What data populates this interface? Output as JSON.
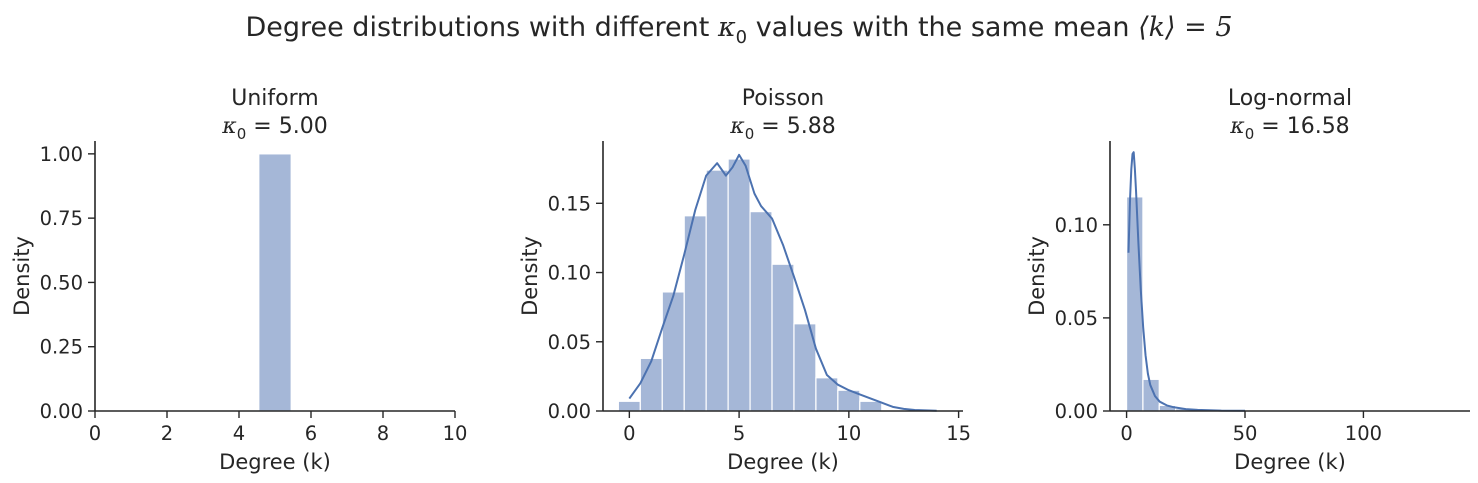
{
  "suptitle": {
    "prefix": "Degree distributions with different ",
    "kappa": "κ",
    "kappa_sub": "0",
    "middle": " values with the same mean ",
    "mean_expr": "⟨k⟩ = 5"
  },
  "colors": {
    "bar_fill": "#a5b7d7",
    "kde_line": "#4c72b0",
    "axis": "#262626"
  },
  "chart_data": [
    {
      "type": "bar",
      "title": "Uniform",
      "subtitle": {
        "symbol": "κ",
        "sub": "0",
        "value": "= 5.00"
      },
      "xlabel": "Degree (k)",
      "ylabel": "Density",
      "xlim": [
        0,
        10
      ],
      "ylim": [
        0,
        1.05
      ],
      "xticks": [
        0,
        2,
        4,
        6,
        8,
        10
      ],
      "xtick_labels": [
        "0",
        "2",
        "4",
        "6",
        "8",
        "10"
      ],
      "yticks": [
        0.0,
        0.25,
        0.5,
        0.75,
        1.0
      ],
      "ytick_labels": [
        "0.00",
        "0.25",
        "0.50",
        "0.75",
        "1.00"
      ],
      "bins": [
        {
          "x0": 4.55,
          "x1": 5.45,
          "density": 1.0
        }
      ],
      "kde": []
    },
    {
      "type": "bar",
      "title": "Poisson",
      "subtitle": {
        "symbol": "κ",
        "sub": "0",
        "value": "= 5.88"
      },
      "xlabel": "Degree (k)",
      "ylabel": "Density",
      "xlim": [
        -1.2,
        15.2
      ],
      "ylim": [
        0,
        0.195
      ],
      "xticks": [
        0,
        5,
        10,
        15
      ],
      "xtick_labels": [
        "0",
        "5",
        "10",
        "15"
      ],
      "yticks": [
        0.0,
        0.05,
        0.1,
        0.15
      ],
      "ytick_labels": [
        "0.00",
        "0.05",
        "0.10",
        "0.15"
      ],
      "bins": [
        {
          "x0": -0.5,
          "x1": 0.5,
          "density": 0.007
        },
        {
          "x0": 0.5,
          "x1": 1.5,
          "density": 0.038
        },
        {
          "x0": 1.5,
          "x1": 2.5,
          "density": 0.086
        },
        {
          "x0": 2.5,
          "x1": 3.5,
          "density": 0.141
        },
        {
          "x0": 3.5,
          "x1": 4.5,
          "density": 0.174
        },
        {
          "x0": 4.5,
          "x1": 5.5,
          "density": 0.182
        },
        {
          "x0": 5.5,
          "x1": 6.5,
          "density": 0.144
        },
        {
          "x0": 6.5,
          "x1": 7.5,
          "density": 0.106
        },
        {
          "x0": 7.5,
          "x1": 8.5,
          "density": 0.063
        },
        {
          "x0": 8.5,
          "x1": 9.5,
          "density": 0.024
        },
        {
          "x0": 9.5,
          "x1": 10.5,
          "density": 0.015
        },
        {
          "x0": 10.5,
          "x1": 11.5,
          "density": 0.007
        }
      ],
      "kde": [
        [
          0,
          0.009
        ],
        [
          0.5,
          0.02
        ],
        [
          1,
          0.036
        ],
        [
          1.5,
          0.06
        ],
        [
          2,
          0.083
        ],
        [
          2.5,
          0.113
        ],
        [
          3,
          0.145
        ],
        [
          3.5,
          0.17
        ],
        [
          4,
          0.179
        ],
        [
          4.4,
          0.17
        ],
        [
          4.7,
          0.176
        ],
        [
          5,
          0.185
        ],
        [
          5.3,
          0.177
        ],
        [
          5.7,
          0.157
        ],
        [
          6,
          0.148
        ],
        [
          6.5,
          0.139
        ],
        [
          7,
          0.12
        ],
        [
          7.5,
          0.097
        ],
        [
          8,
          0.073
        ],
        [
          8.5,
          0.045
        ],
        [
          9,
          0.026
        ],
        [
          9.5,
          0.019
        ],
        [
          10,
          0.015
        ],
        [
          10.5,
          0.012
        ],
        [
          11,
          0.009
        ],
        [
          11.5,
          0.006
        ],
        [
          12,
          0.003
        ],
        [
          12.5,
          0.0015
        ],
        [
          13,
          0.0007
        ],
        [
          14,
          0.0002
        ]
      ]
    },
    {
      "type": "bar",
      "title": "Log-normal",
      "subtitle": {
        "symbol": "κ",
        "sub": "0",
        "value": "= 16.58"
      },
      "xlabel": "Degree (k)",
      "ylabel": "Density",
      "xlim": [
        -7,
        145
      ],
      "ylim": [
        0,
        0.145
      ],
      "xticks": [
        0,
        50,
        100
      ],
      "xtick_labels": [
        "0",
        "50",
        "100"
      ],
      "yticks": [
        0.0,
        0.05,
        0.1
      ],
      "ytick_labels": [
        "0.00",
        "0.05",
        "0.10"
      ],
      "bins": [
        {
          "x0": 0,
          "x1": 6.9,
          "density": 0.115
        },
        {
          "x0": 6.9,
          "x1": 13.8,
          "density": 0.017
        },
        {
          "x0": 13.8,
          "x1": 20.7,
          "density": 0.003
        },
        {
          "x0": 20.7,
          "x1": 27.6,
          "density": 0.0012
        },
        {
          "x0": 27.6,
          "x1": 34.5,
          "density": 0.0005
        },
        {
          "x0": 34.5,
          "x1": 41.4,
          "density": 0.0002
        }
      ],
      "kde": [
        [
          0.8,
          0.085
        ],
        [
          1.5,
          0.115
        ],
        [
          2,
          0.13
        ],
        [
          2.5,
          0.138
        ],
        [
          3,
          0.139
        ],
        [
          3.5,
          0.13
        ],
        [
          4,
          0.118
        ],
        [
          5,
          0.09
        ],
        [
          6,
          0.065
        ],
        [
          7,
          0.045
        ],
        [
          8,
          0.03
        ],
        [
          9,
          0.02
        ],
        [
          10,
          0.014
        ],
        [
          12,
          0.008
        ],
        [
          14,
          0.005
        ],
        [
          17,
          0.003
        ],
        [
          20,
          0.002
        ],
        [
          25,
          0.001
        ],
        [
          30,
          0.0006
        ],
        [
          40,
          0.0002
        ],
        [
          50,
          0.0001
        ]
      ]
    }
  ]
}
